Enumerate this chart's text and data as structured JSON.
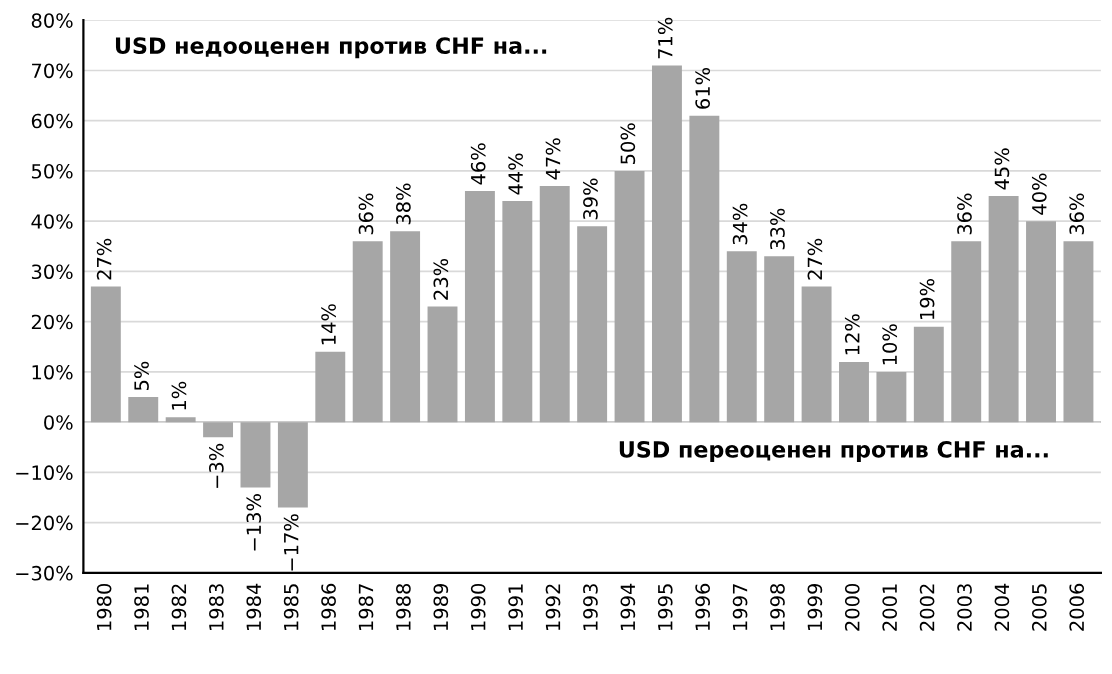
{
  "chart_data": {
    "type": "bar",
    "categories": [
      "1980",
      "1981",
      "1982",
      "1983",
      "1984",
      "1985",
      "1986",
      "1987",
      "1988",
      "1989",
      "1990",
      "1991",
      "1992",
      "1993",
      "1994",
      "1995",
      "1996",
      "1997",
      "1998",
      "1999",
      "2000",
      "2001",
      "2002",
      "2003",
      "2004",
      "2005",
      "2006"
    ],
    "values": [
      27,
      5,
      1,
      -3,
      -13,
      -17,
      14,
      36,
      38,
      23,
      46,
      44,
      47,
      39,
      50,
      71,
      61,
      34,
      33,
      27,
      12,
      10,
      19,
      36,
      45,
      40,
      36
    ],
    "value_labels": [
      "27%",
      "5%",
      "1%",
      "−3%",
      "−13%",
      "−17%",
      "14%",
      "36%",
      "38%",
      "23%",
      "46%",
      "44%",
      "47%",
      "39%",
      "50%",
      "71%",
      "61%",
      "34%",
      "33%",
      "27%",
      "12%",
      "10%",
      "19%",
      "36%",
      "45%",
      "40%",
      "36%"
    ],
    "color": "#a6a6a6",
    "ylim": [
      -30,
      80
    ],
    "yticks": [
      {
        "value": -30,
        "label": "−30%"
      },
      {
        "value": -20,
        "label": "−20%"
      },
      {
        "value": -10,
        "label": "−10%"
      },
      {
        "value": 0,
        "label": "0%"
      },
      {
        "value": 10,
        "label": "10%"
      },
      {
        "value": 20,
        "label": "20%"
      },
      {
        "value": 30,
        "label": "30%"
      },
      {
        "value": 40,
        "label": "40%"
      },
      {
        "value": 50,
        "label": "50%"
      },
      {
        "value": 60,
        "label": "60%"
      },
      {
        "value": 70,
        "label": "70%"
      },
      {
        "value": 80,
        "label": "80%"
      }
    ],
    "grid": "y",
    "annotations": [
      "USD недооценен против CHF на...",
      "USD переоценен против CHF на..."
    ]
  }
}
